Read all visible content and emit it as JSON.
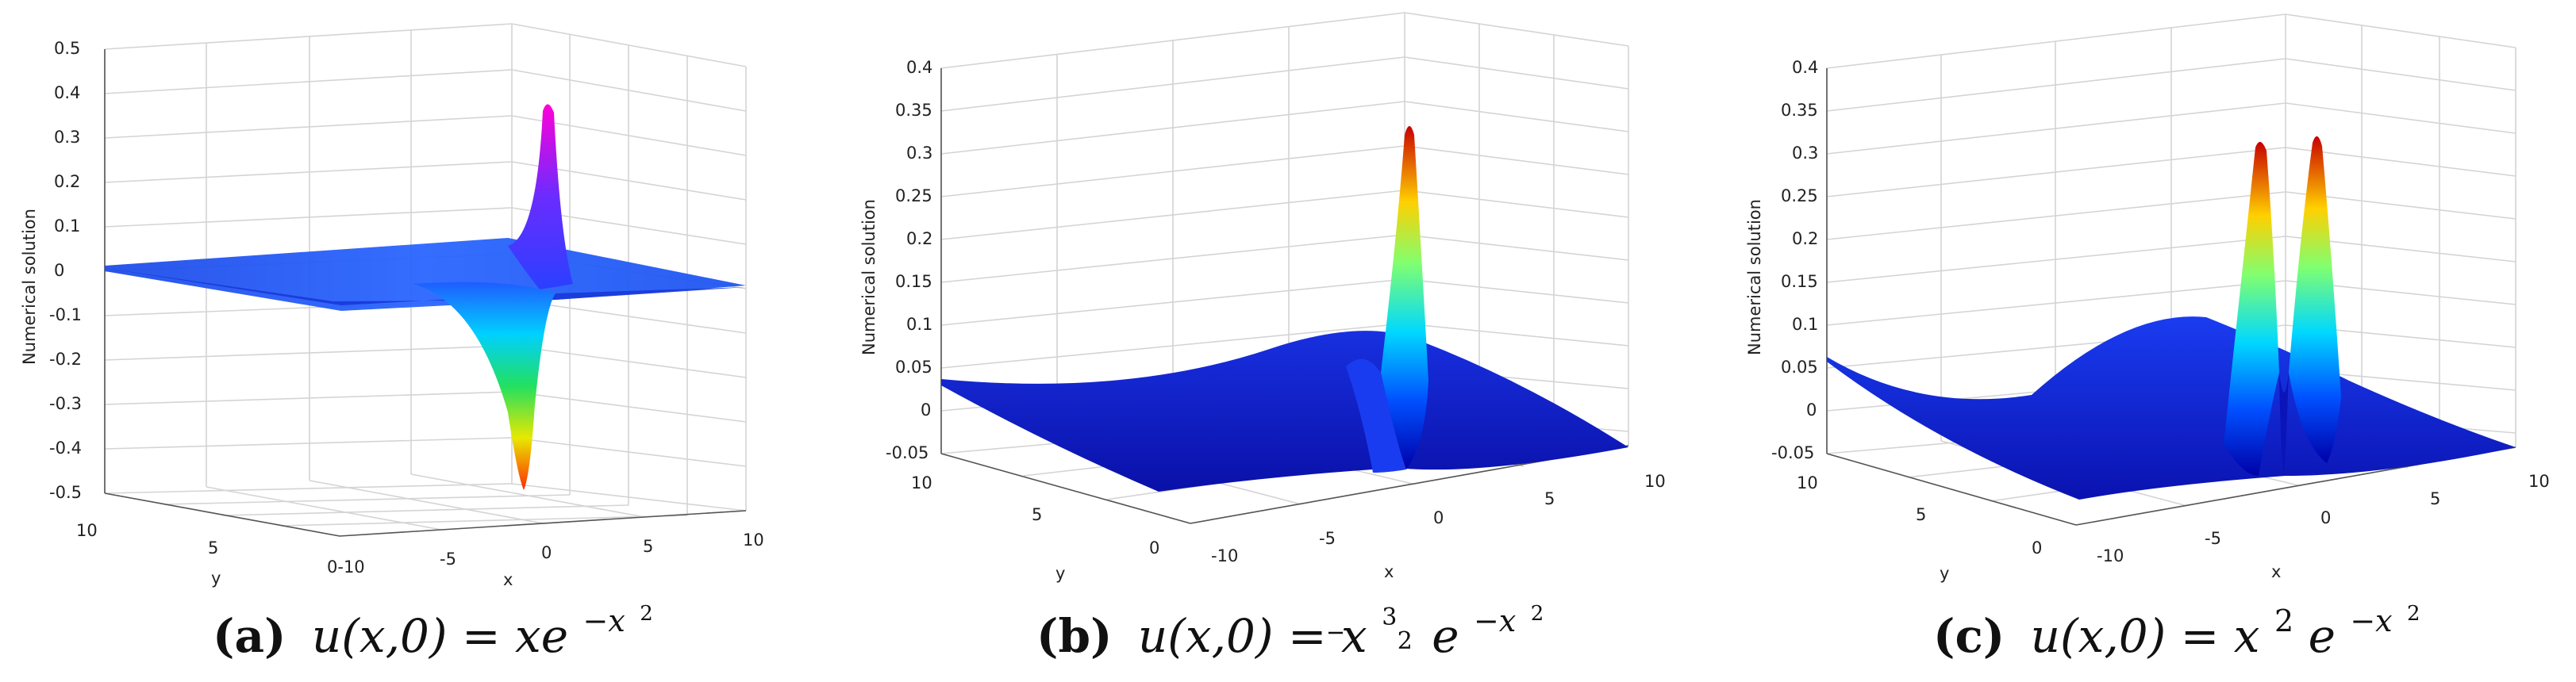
{
  "chart_data": [
    {
      "type": "surface",
      "panel": "a",
      "caption_tag": "(a)",
      "caption_lhs": "u(x,0) = ",
      "caption_rhs": "xe",
      "caption_exp": "−x",
      "caption_exp2": "2",
      "zlabel": "Numerical solution",
      "xlabel": "x",
      "ylabel": "y",
      "zlim": [
        -0.5,
        0.5
      ],
      "zticks": [
        "0.5",
        "0.4",
        "0.3",
        "0.2",
        "0.1",
        "0",
        "-0.1",
        "-0.2",
        "-0.3",
        "-0.4",
        "-0.5"
      ],
      "xticks": [
        "0-10",
        "-5",
        "0",
        "5",
        "10"
      ],
      "yticks": [
        "10",
        "5"
      ],
      "peak_max": 0.36,
      "peak_min": -0.49,
      "grid": true
    },
    {
      "type": "surface",
      "panel": "b",
      "caption_tag": "(b)",
      "caption_lhs": "u(x,0) = ",
      "caption_rhs": "x",
      "caption_exp_num": "3",
      "caption_exp_den": "2",
      "caption_tail": "e",
      "caption_exp": "−x",
      "caption_exp2": "2",
      "zlabel": "Numerical solution",
      "xlabel": "x",
      "ylabel": "y",
      "zlim": [
        -0.05,
        0.4
      ],
      "zticks": [
        "0.4",
        "0.35",
        "0.3",
        "0.25",
        "0.2",
        "0.15",
        "0.1",
        "0.05",
        "0",
        "-0.05"
      ],
      "xticks": [
        "-10",
        "-5",
        "0",
        "5",
        "10"
      ],
      "yticks": [
        "10",
        "5",
        "0"
      ],
      "peak_max": 0.32,
      "grid": true
    },
    {
      "type": "surface",
      "panel": "c",
      "caption_tag": "(c)",
      "caption_lhs": "u(x,0) = ",
      "caption_rhs": "x",
      "caption_pow": "2",
      "caption_tail": "e",
      "caption_exp": "−x",
      "caption_exp2": "2",
      "zlabel": "Numerical solution",
      "xlabel": "x",
      "ylabel": "y",
      "zlim": [
        -0.05,
        0.4
      ],
      "zticks": [
        "0.4",
        "0.35",
        "0.3",
        "0.25",
        "0.2",
        "0.15",
        "0.1",
        "0.05",
        "0",
        "-0.05"
      ],
      "xticks": [
        "-10",
        "-5",
        "0",
        "5",
        "10"
      ],
      "yticks": [
        "10",
        "5",
        "0"
      ],
      "peak_max": 0.32,
      "grid": true
    }
  ],
  "colors": {
    "surface_low": "#1a2ad8",
    "surface_mid": "#00c8ff",
    "surface_high": "#ff2a1a",
    "surface_a_high": "#ff00d8",
    "grid": "#d4d4d4"
  }
}
